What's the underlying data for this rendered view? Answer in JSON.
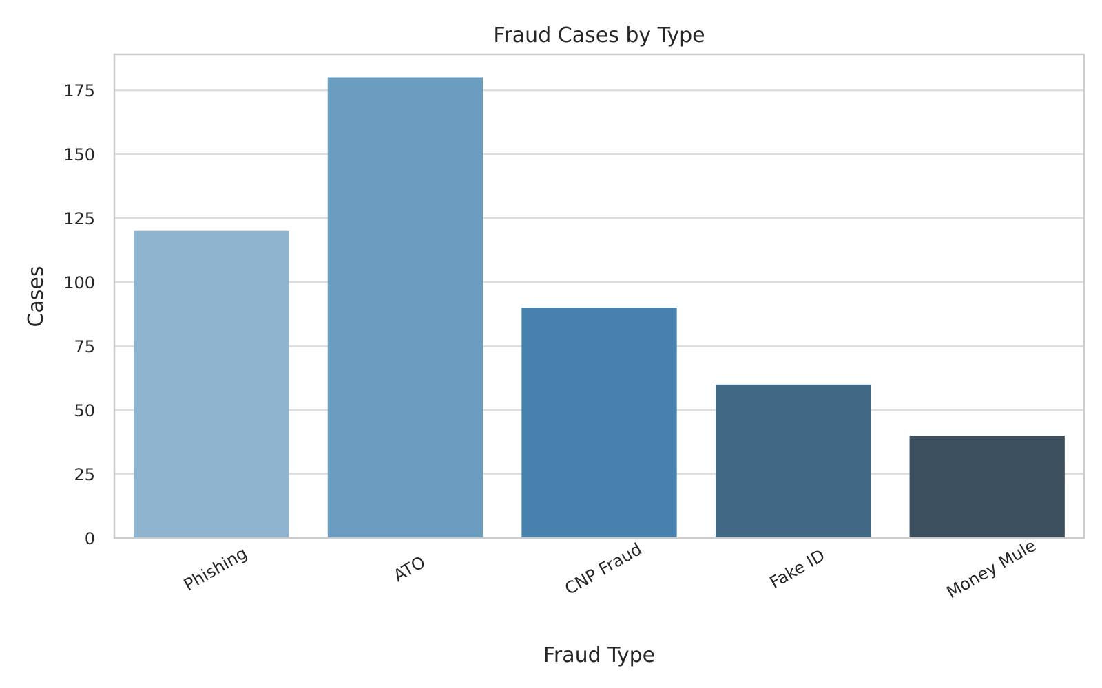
{
  "chart_data": {
    "type": "bar",
    "title": "Fraud Cases by Type",
    "xlabel": "Fraud Type",
    "ylabel": "Cases",
    "categories": [
      "Phishing",
      "ATO",
      "CNP Fraud",
      "Fake ID",
      "Money Mule"
    ],
    "values": [
      120,
      180,
      90,
      60,
      40
    ],
    "ylim": [
      0,
      189
    ],
    "yticks": [
      0,
      25,
      50,
      75,
      100,
      125,
      150,
      175
    ],
    "grid": true,
    "colors": [
      "#8fb4d0",
      "#6b9dc0",
      "#4781ae",
      "#416884",
      "#3b4f5e"
    ]
  }
}
